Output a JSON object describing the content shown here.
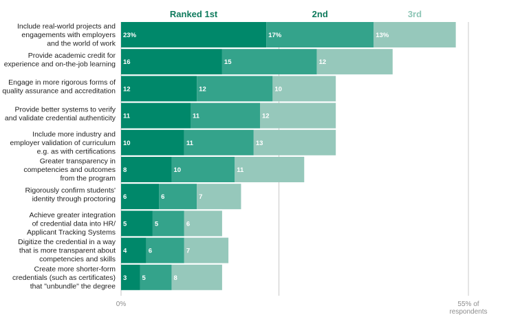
{
  "chart_data": {
    "type": "bar",
    "orientation": "horizontal",
    "stacked": true,
    "title": "",
    "xlabel": "% of respondents",
    "ylabel": "",
    "xlim": [
      0,
      55
    ],
    "grid": true,
    "legend_position": "top",
    "value_unit_note": "first row labeled with %",
    "categories": [
      [
        "Include real-world projects and",
        "engagements with employers",
        "and the world of work"
      ],
      [
        "Provide academic credit for",
        "experience and on-the-job learning"
      ],
      [
        "Engage in more rigorous forms of",
        "quality assurance and accreditation"
      ],
      [
        "Provide better systems to verify",
        "and validate credential authenticity"
      ],
      [
        "Include more industry and",
        "employer validation of curriculum",
        "e.g. as with certifications"
      ],
      [
        "Greater transparency in",
        "competencies and outcomes",
        "from the program"
      ],
      [
        "Rigorously confirm students'",
        "identity through proctoring"
      ],
      [
        "Achieve greater integration",
        "of credential data into HR/",
        "Applicant Tracking Systems"
      ],
      [
        "Digitize the credential in a way",
        "that is more transparent about",
        "competencies and skills"
      ],
      [
        "Create more shorter-form",
        "credentials (such as certificates)",
        "that \"unbundle\" the degree"
      ]
    ],
    "series": [
      {
        "name": "Ranked 1st",
        "color": "#00886a",
        "values": [
          23,
          16,
          12,
          11,
          10,
          8,
          6,
          5,
          4,
          3
        ]
      },
      {
        "name": "2nd",
        "color": "#34a38b",
        "values": [
          17,
          15,
          12,
          11,
          11,
          10,
          6,
          5,
          6,
          5
        ]
      },
      {
        "name": "3rd",
        "color": "#96c8bb",
        "values": [
          13,
          12,
          10,
          12,
          13,
          11,
          7,
          6,
          7,
          8
        ]
      }
    ],
    "first_row_suffix": "%",
    "x_ticks": [
      {
        "value": 0,
        "label": [
          "0%"
        ]
      },
      {
        "value": 55,
        "label": [
          "55% of",
          "respondents"
        ]
      }
    ],
    "gridlines": [
      25,
      55
    ],
    "header_colors": [
      "#0e7a5c",
      "#0e7a5c",
      "#8cc5b5"
    ]
  }
}
